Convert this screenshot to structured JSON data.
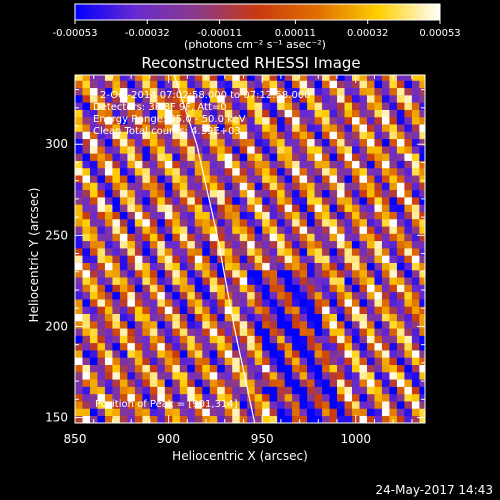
{
  "chart_data": {
    "type": "heatmap",
    "title": "Reconstructed RHESSI Image",
    "xlabel": "Heliocentric X (arcsec)",
    "ylabel": "Heliocentric Y (arcsec)",
    "xlim": [
      850,
      1037
    ],
    "ylim": [
      147,
      338
    ],
    "x_ticks": [
      850,
      900,
      950,
      1000
    ],
    "y_ticks": [
      150,
      200,
      250,
      300
    ],
    "colorbar": {
      "ticks": [
        "-0.00053",
        "-0.00032",
        "-0.00011",
        "0.00011",
        "0.00032",
        "0.00053"
      ],
      "range": [
        -0.00053,
        0.00053
      ],
      "unit_label": "(photons cm⁻² s⁻¹ asec⁻²)",
      "colors": [
        "#0000ff",
        "#6a2ad0",
        "#8a3a8a",
        "#c83a10",
        "#e07000",
        "#ffd000",
        "#ffffff"
      ]
    },
    "annotations": [
      "2-Oct-2014 07:02:58.000 to 07:12:58.000",
      "Detectors: 3F 8F 9F, Att=0",
      "Energy Range: 35.0 - 50.0 keV",
      "Clean    Total counts: 4.39E+03"
    ],
    "peak": {
      "label": "Position of Peak = [901,314]",
      "x": 901,
      "y": 314
    },
    "limb_curve": [
      [
        903,
        338
      ],
      [
        915,
        300
      ],
      [
        926,
        250
      ],
      [
        935,
        200
      ],
      [
        946,
        147
      ]
    ],
    "pattern": {
      "stripe_period_arcsec": 14,
      "stripe_angle_deg": 58
    }
  },
  "timestamp": "24-May-2017 14:43"
}
